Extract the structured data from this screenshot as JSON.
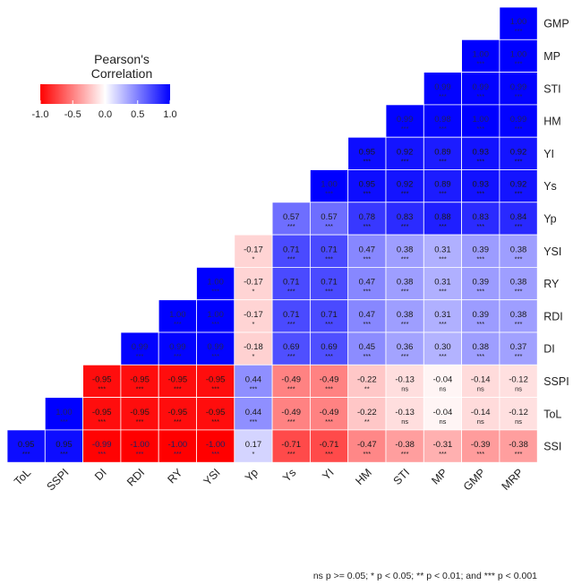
{
  "chart_data": {
    "type": "heatmap",
    "title": "",
    "legend": {
      "title_line1": "Pearson's",
      "title_line2": "Correlation",
      "ticks": [
        "-1.0",
        "-0.5",
        "0.0",
        "0.5",
        "1.0"
      ],
      "range": [
        -1,
        1
      ],
      "colors": {
        "low": "#ff0000",
        "mid": "#ffffff",
        "high": "#0000ff"
      }
    },
    "rows": [
      "GMP",
      "MP",
      "STI",
      "HM",
      "YI",
      "Ys",
      "Yp",
      "YSI",
      "RY",
      "RDI",
      "DI",
      "SSPI",
      "ToL",
      "SSI"
    ],
    "columns": [
      "ToL",
      "SSPI",
      "DI",
      "RDI",
      "RY",
      "YSI",
      "Yp",
      "Ys",
      "YI",
      "HM",
      "STI",
      "MP",
      "GMP",
      "MRP"
    ],
    "cells": [
      {
        "row": "GMP",
        "col": "MRP",
        "value": "1.00",
        "sig": "***"
      },
      {
        "row": "MP",
        "col": "GMP",
        "value": "1.00",
        "sig": "***"
      },
      {
        "row": "MP",
        "col": "MRP",
        "value": "1.00",
        "sig": "***"
      },
      {
        "row": "STI",
        "col": "MP",
        "value": "0.99",
        "sig": "***"
      },
      {
        "row": "STI",
        "col": "GMP",
        "value": "0.99",
        "sig": "***"
      },
      {
        "row": "STI",
        "col": "MRP",
        "value": "0.99",
        "sig": "***"
      },
      {
        "row": "HM",
        "col": "STI",
        "value": "0.99",
        "sig": "***"
      },
      {
        "row": "HM",
        "col": "MP",
        "value": "0.98",
        "sig": "***"
      },
      {
        "row": "HM",
        "col": "GMP",
        "value": "1.00",
        "sig": "***"
      },
      {
        "row": "HM",
        "col": "MRP",
        "value": "0.99",
        "sig": "***"
      },
      {
        "row": "YI",
        "col": "HM",
        "value": "0.95",
        "sig": "***"
      },
      {
        "row": "YI",
        "col": "STI",
        "value": "0.92",
        "sig": "***"
      },
      {
        "row": "YI",
        "col": "MP",
        "value": "0.89",
        "sig": "***"
      },
      {
        "row": "YI",
        "col": "GMP",
        "value": "0.93",
        "sig": "***"
      },
      {
        "row": "YI",
        "col": "MRP",
        "value": "0.92",
        "sig": "***"
      },
      {
        "row": "Ys",
        "col": "YI",
        "value": "1.00",
        "sig": "***"
      },
      {
        "row": "Ys",
        "col": "HM",
        "value": "0.95",
        "sig": "***"
      },
      {
        "row": "Ys",
        "col": "STI",
        "value": "0.92",
        "sig": "***"
      },
      {
        "row": "Ys",
        "col": "MP",
        "value": "0.89",
        "sig": "***"
      },
      {
        "row": "Ys",
        "col": "GMP",
        "value": "0.93",
        "sig": "***"
      },
      {
        "row": "Ys",
        "col": "MRP",
        "value": "0.92",
        "sig": "***"
      },
      {
        "row": "Yp",
        "col": "Ys",
        "value": "0.57",
        "sig": "***"
      },
      {
        "row": "Yp",
        "col": "YI",
        "value": "0.57",
        "sig": "***"
      },
      {
        "row": "Yp",
        "col": "HM",
        "value": "0.78",
        "sig": "***"
      },
      {
        "row": "Yp",
        "col": "STI",
        "value": "0.83",
        "sig": "***"
      },
      {
        "row": "Yp",
        "col": "MP",
        "value": "0.88",
        "sig": "***"
      },
      {
        "row": "Yp",
        "col": "GMP",
        "value": "0.83",
        "sig": "***"
      },
      {
        "row": "Yp",
        "col": "MRP",
        "value": "0.84",
        "sig": "***"
      },
      {
        "row": "YSI",
        "col": "Yp",
        "value": "-0.17",
        "sig": "*"
      },
      {
        "row": "YSI",
        "col": "Ys",
        "value": "0.71",
        "sig": "***"
      },
      {
        "row": "YSI",
        "col": "YI",
        "value": "0.71",
        "sig": "***"
      },
      {
        "row": "YSI",
        "col": "HM",
        "value": "0.47",
        "sig": "***"
      },
      {
        "row": "YSI",
        "col": "STI",
        "value": "0.38",
        "sig": "***"
      },
      {
        "row": "YSI",
        "col": "MP",
        "value": "0.31",
        "sig": "***"
      },
      {
        "row": "YSI",
        "col": "GMP",
        "value": "0.39",
        "sig": "***"
      },
      {
        "row": "YSI",
        "col": "MRP",
        "value": "0.38",
        "sig": "***"
      },
      {
        "row": "RY",
        "col": "YSI",
        "value": "1.00",
        "sig": "***"
      },
      {
        "row": "RY",
        "col": "Yp",
        "value": "-0.17",
        "sig": "*"
      },
      {
        "row": "RY",
        "col": "Ys",
        "value": "0.71",
        "sig": "***"
      },
      {
        "row": "RY",
        "col": "YI",
        "value": "0.71",
        "sig": "***"
      },
      {
        "row": "RY",
        "col": "HM",
        "value": "0.47",
        "sig": "***"
      },
      {
        "row": "RY",
        "col": "STI",
        "value": "0.38",
        "sig": "***"
      },
      {
        "row": "RY",
        "col": "MP",
        "value": "0.31",
        "sig": "***"
      },
      {
        "row": "RY",
        "col": "GMP",
        "value": "0.39",
        "sig": "***"
      },
      {
        "row": "RY",
        "col": "MRP",
        "value": "0.38",
        "sig": "***"
      },
      {
        "row": "RDI",
        "col": "RY",
        "value": "1.00",
        "sig": "***"
      },
      {
        "row": "RDI",
        "col": "YSI",
        "value": "1.00",
        "sig": "***"
      },
      {
        "row": "RDI",
        "col": "Yp",
        "value": "-0.17",
        "sig": "*"
      },
      {
        "row": "RDI",
        "col": "Ys",
        "value": "0.71",
        "sig": "***"
      },
      {
        "row": "RDI",
        "col": "YI",
        "value": "0.71",
        "sig": "***"
      },
      {
        "row": "RDI",
        "col": "HM",
        "value": "0.47",
        "sig": "***"
      },
      {
        "row": "RDI",
        "col": "STI",
        "value": "0.38",
        "sig": "***"
      },
      {
        "row": "RDI",
        "col": "MP",
        "value": "0.31",
        "sig": "***"
      },
      {
        "row": "RDI",
        "col": "GMP",
        "value": "0.39",
        "sig": "***"
      },
      {
        "row": "RDI",
        "col": "MRP",
        "value": "0.38",
        "sig": "***"
      },
      {
        "row": "DI",
        "col": "RDI",
        "value": "0.99",
        "sig": "***"
      },
      {
        "row": "DI",
        "col": "RY",
        "value": "0.99",
        "sig": "***"
      },
      {
        "row": "DI",
        "col": "YSI",
        "value": "0.99",
        "sig": "***"
      },
      {
        "row": "DI",
        "col": "Yp",
        "value": "-0.18",
        "sig": "*"
      },
      {
        "row": "DI",
        "col": "Ys",
        "value": "0.69",
        "sig": "***"
      },
      {
        "row": "DI",
        "col": "YI",
        "value": "0.69",
        "sig": "***"
      },
      {
        "row": "DI",
        "col": "HM",
        "value": "0.45",
        "sig": "***"
      },
      {
        "row": "DI",
        "col": "STI",
        "value": "0.36",
        "sig": "***"
      },
      {
        "row": "DI",
        "col": "MP",
        "value": "0.30",
        "sig": "***"
      },
      {
        "row": "DI",
        "col": "GMP",
        "value": "0.38",
        "sig": "***"
      },
      {
        "row": "DI",
        "col": "MRP",
        "value": "0.37",
        "sig": "***"
      },
      {
        "row": "SSPI",
        "col": "DI",
        "value": "-0.95",
        "sig": "***"
      },
      {
        "row": "SSPI",
        "col": "RDI",
        "value": "-0.95",
        "sig": "***"
      },
      {
        "row": "SSPI",
        "col": "RY",
        "value": "-0.95",
        "sig": "***"
      },
      {
        "row": "SSPI",
        "col": "YSI",
        "value": "-0.95",
        "sig": "***"
      },
      {
        "row": "SSPI",
        "col": "Yp",
        "value": "0.44",
        "sig": "***"
      },
      {
        "row": "SSPI",
        "col": "Ys",
        "value": "-0.49",
        "sig": "***"
      },
      {
        "row": "SSPI",
        "col": "YI",
        "value": "-0.49",
        "sig": "***"
      },
      {
        "row": "SSPI",
        "col": "HM",
        "value": "-0.22",
        "sig": "**"
      },
      {
        "row": "SSPI",
        "col": "STI",
        "value": "-0.13",
        "sig": "ns"
      },
      {
        "row": "SSPI",
        "col": "MP",
        "value": "-0.04",
        "sig": "ns"
      },
      {
        "row": "SSPI",
        "col": "GMP",
        "value": "-0.14",
        "sig": "ns"
      },
      {
        "row": "SSPI",
        "col": "MRP",
        "value": "-0.12",
        "sig": "ns"
      },
      {
        "row": "ToL",
        "col": "SSPI",
        "value": "1.00",
        "sig": "***"
      },
      {
        "row": "ToL",
        "col": "DI",
        "value": "-0.95",
        "sig": "***"
      },
      {
        "row": "ToL",
        "col": "RDI",
        "value": "-0.95",
        "sig": "***"
      },
      {
        "row": "ToL",
        "col": "RY",
        "value": "-0.95",
        "sig": "***"
      },
      {
        "row": "ToL",
        "col": "YSI",
        "value": "-0.95",
        "sig": "***"
      },
      {
        "row": "ToL",
        "col": "Yp",
        "value": "0.44",
        "sig": "***"
      },
      {
        "row": "ToL",
        "col": "Ys",
        "value": "-0.49",
        "sig": "***"
      },
      {
        "row": "ToL",
        "col": "YI",
        "value": "-0.49",
        "sig": "***"
      },
      {
        "row": "ToL",
        "col": "HM",
        "value": "-0.22",
        "sig": "**"
      },
      {
        "row": "ToL",
        "col": "STI",
        "value": "-0.13",
        "sig": "ns"
      },
      {
        "row": "ToL",
        "col": "MP",
        "value": "-0.04",
        "sig": "ns"
      },
      {
        "row": "ToL",
        "col": "GMP",
        "value": "-0.14",
        "sig": "ns"
      },
      {
        "row": "ToL",
        "col": "MRP",
        "value": "-0.12",
        "sig": "ns"
      },
      {
        "row": "SSI",
        "col": "ToL",
        "value": "0.95",
        "sig": "***"
      },
      {
        "row": "SSI",
        "col": "SSPI",
        "value": "0.95",
        "sig": "***"
      },
      {
        "row": "SSI",
        "col": "DI",
        "value": "-0.99",
        "sig": "***"
      },
      {
        "row": "SSI",
        "col": "RDI",
        "value": "-1.00",
        "sig": "***"
      },
      {
        "row": "SSI",
        "col": "RY",
        "value": "-1.00",
        "sig": "***"
      },
      {
        "row": "SSI",
        "col": "YSI",
        "value": "-1.00",
        "sig": "***"
      },
      {
        "row": "SSI",
        "col": "Yp",
        "value": "0.17",
        "sig": "*"
      },
      {
        "row": "SSI",
        "col": "Ys",
        "value": "-0.71",
        "sig": "***"
      },
      {
        "row": "SSI",
        "col": "YI",
        "value": "-0.71",
        "sig": "***"
      },
      {
        "row": "SSI",
        "col": "HM",
        "value": "-0.47",
        "sig": "***"
      },
      {
        "row": "SSI",
        "col": "STI",
        "value": "-0.38",
        "sig": "***"
      },
      {
        "row": "SSI",
        "col": "MP",
        "value": "-0.31",
        "sig": "***"
      },
      {
        "row": "SSI",
        "col": "GMP",
        "value": "-0.39",
        "sig": "***"
      },
      {
        "row": "SSI",
        "col": "MRP",
        "value": "-0.38",
        "sig": "***"
      }
    ],
    "footnote": "ns p >= 0.05; * p < 0.05; ** p < 0.01; and *** p < 0.001"
  }
}
